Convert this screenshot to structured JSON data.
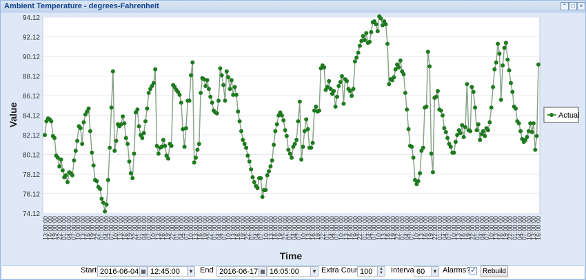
{
  "window": {
    "title": "Ambient Temperature - degrees-Fahrenheit"
  },
  "toolbar": {
    "start_label": "Start",
    "start_date": "2016-06-04",
    "start_time": "12:45:00",
    "end_label": "End",
    "end_date": "2016-06-17",
    "end_time": "16:05:00",
    "extra_count_label": "Extra Count",
    "extra_count": "100",
    "interval_label": "Interval",
    "interval": "60",
    "alarms_label": "Alarms?",
    "alarms_checked": true,
    "rebuild_label": "Rebuild"
  },
  "icons": {
    "collapse": "double-chevron-up-icon",
    "maximize": "maximize-icon",
    "close": "close-icon",
    "calendar": "calendar-icon"
  },
  "colors": {
    "line": "#8aa38a",
    "marker": "#1f7a1f",
    "title": "#15428b"
  },
  "chart_data": {
    "type": "line",
    "xlabel": "Time",
    "ylabel": "Value",
    "ylim": [
      74.12,
      94.12
    ],
    "yticks": [
      "94.12",
      "92.12",
      "90.12",
      "88.12",
      "86.12",
      "84.12",
      "82.12",
      "80.12",
      "78.12",
      "76.12",
      "74.12"
    ],
    "xticks": [
      "13:00:00",
      "16:00:00",
      "19:00:00",
      "22:00:00",
      "01:00:00",
      "04:00:00",
      "07:00:00",
      "10:00:00",
      "13:00:00",
      "16:00:00",
      "19:00:00",
      "22:00:00",
      "01:00:00",
      "04:00:00",
      "07:00:00",
      "10:00:00",
      "13:00:00",
      "16:00:00",
      "19:00:00",
      "22:00:00",
      "01:00:00",
      "04:00:00",
      "07:00:00",
      "10:00:00",
      "13:00:00",
      "16:00:00",
      "19:00:00",
      "22:00:00",
      "01:00:00",
      "04:00:00",
      "07:00:00",
      "10:00:00",
      "13:00:00",
      "16:00:00",
      "19:00:00",
      "22:00:00",
      "01:00:00",
      "04:00:00",
      "07:00:00",
      "10:00:00",
      "13:00:00",
      "16:00:00",
      "19:00:00",
      "22:00:00",
      "01:00:00",
      "04:00:00",
      "07:00:00",
      "10:00:00",
      "13:00:00",
      "16:00:00",
      "19:00:00",
      "22:00:00",
      "01:00:00",
      "04:00:00",
      "07:00:00",
      "10:00:00",
      "13:00:00",
      "16:00:00",
      "19:00:00",
      "22:00:00",
      "01:00:00",
      "04:00:00",
      "07:00:00",
      "10:00:00",
      "13:00:00",
      "16:00:00",
      "19:00:00",
      "22:00:00",
      "01:00:00",
      "04:00:00",
      "07:00:00",
      "10:00:00",
      "13:00:00",
      "16:00:00",
      "19:00:00",
      "22:00:00",
      "01:00:00",
      "04:00:00",
      "07:00:00",
      "10:00:00",
      "13:00:00",
      "16:00:00",
      "19:00:00",
      "22:00:00",
      "01:00:00",
      "04:00:00",
      "07:00:00",
      "10:00:00",
      "13:00:00",
      "16:00:00",
      "19:00:00",
      "22:00:00",
      "01:00:00",
      "04:00:00",
      "07:00:00",
      "10:00:00",
      "13:00:00",
      "16:00:00",
      "19:00:00",
      "22:00:00",
      "01:00:00",
      "04:00:00",
      "07:00:00",
      "10:00:00",
      "13:00:00",
      "16:00:00"
    ],
    "legend_position": "right",
    "series": [
      {
        "name": "Actual",
        "values": [
          82.1,
          83.5,
          83.8,
          83.7,
          83.5,
          82.0,
          81.8,
          80.0,
          79.8,
          78.9,
          79.6,
          78.5,
          77.8,
          78.0,
          77.3,
          78.3,
          78.2,
          78.0,
          79.5,
          80.5,
          81.5,
          83.0,
          82.8,
          81.2,
          83.4,
          84.2,
          84.5,
          84.8,
          82.5,
          80.3,
          79.0,
          77.5,
          77.4,
          76.8,
          76.6,
          75.6,
          75.2,
          74.3,
          75.0,
          77.5,
          80.8,
          84.9,
          88.6,
          80.5,
          81.5,
          83.2,
          83.0,
          83.2,
          84.0,
          83.3,
          81.8,
          81.2,
          79.4,
          78.2,
          77.7,
          80.2,
          84.4,
          84.7,
          83.0,
          82.1,
          81.8,
          82.3,
          83.5,
          84.8,
          86.4,
          86.8,
          87.1,
          87.4,
          88.8,
          81.0,
          80.2,
          80.8,
          80.9,
          81.6,
          81.0,
          80.0,
          79.7,
          81.2,
          81.0,
          87.2,
          87.0,
          86.7,
          86.5,
          86.2,
          85.4,
          82.7,
          80.9,
          82.8,
          85.6,
          85.6,
          88.2,
          89.5,
          79.3,
          79.8,
          80.6,
          81.2,
          86.4,
          87.9,
          87.8,
          87.1,
          87.7,
          86.8,
          86.0,
          85.4,
          84.6,
          84.4,
          84.3,
          85.6,
          88.9,
          88.2,
          87.2,
          85.6,
          88.6,
          88.0,
          86.8,
          87.7,
          86.2,
          87.0,
          86.2,
          84.5,
          83.5,
          82.5,
          81.6,
          81.2,
          80.8,
          80.0,
          79.4,
          78.6,
          77.8,
          77.3,
          76.9,
          76.7,
          77.7,
          77.7,
          75.8,
          76.5,
          76.5,
          78.0,
          78.4,
          78.9,
          79.5,
          81.1,
          82.5,
          83.2,
          84.1,
          84.4,
          84.1,
          83.6,
          82.6,
          82.0,
          80.6,
          80.2,
          79.8,
          80.9,
          81.2,
          81.6,
          83.5,
          85.5,
          79.6,
          80.9,
          82.5,
          83.7,
          82.7,
          80.8,
          80.8,
          81.3,
          84.6,
          85.0,
          84.5,
          84.6,
          88.9,
          89.2,
          89.0,
          86.7,
          87.0,
          87.6,
          86.8,
          86.3,
          86.6,
          85.0,
          86.0,
          87.1,
          87.5,
          88.1,
          85.3,
          87.8,
          87.6,
          86.8,
          86.6,
          86.1,
          86.8,
          89.6,
          90.0,
          90.5,
          91.2,
          91.7,
          92.2,
          91.8,
          92.5,
          91.5,
          91.6,
          92.6,
          93.6,
          93.7,
          93.4,
          92.7,
          94.2,
          94.0,
          93.3,
          93.7,
          93.4,
          91.4,
          87.3,
          87.8,
          87.7,
          88.0,
          88.8,
          89.3,
          89.0,
          89.7,
          88.6,
          88.3,
          86.4,
          84.7,
          82.7,
          81.0,
          80.9,
          79.8,
          77.5,
          77.1,
          77.4,
          78.2,
          80.5,
          80.8,
          84.9,
          85.0,
          90.6,
          89.1,
          80.2,
          78.3,
          85.9,
          86.0,
          86.6,
          84.7,
          84.6,
          84.1,
          82.8,
          82.4,
          81.8,
          81.2,
          80.9,
          80.3,
          80.3,
          81.4,
          82.1,
          82.6,
          82.3,
          83.1,
          81.9,
          82.9,
          87.3,
          82.6,
          82.5,
          87.0,
          86.5,
          84.9,
          82.6,
          83.2,
          81.6,
          82.2,
          82.5,
          82.0,
          82.8,
          82.6,
          83.4,
          84.9,
          87.0,
          88.8,
          89.5,
          91.4,
          90.4,
          85.7,
          89.2,
          91.0,
          91.5,
          89.8,
          88.7,
          87.4,
          86.5,
          85.0,
          84.8,
          83.5,
          83.3,
          82.5,
          81.7,
          81.4,
          81.6,
          81.9,
          82.5,
          83.3,
          82.4,
          83.3,
          80.6,
          82.0,
          89.3
        ]
      }
    ]
  }
}
